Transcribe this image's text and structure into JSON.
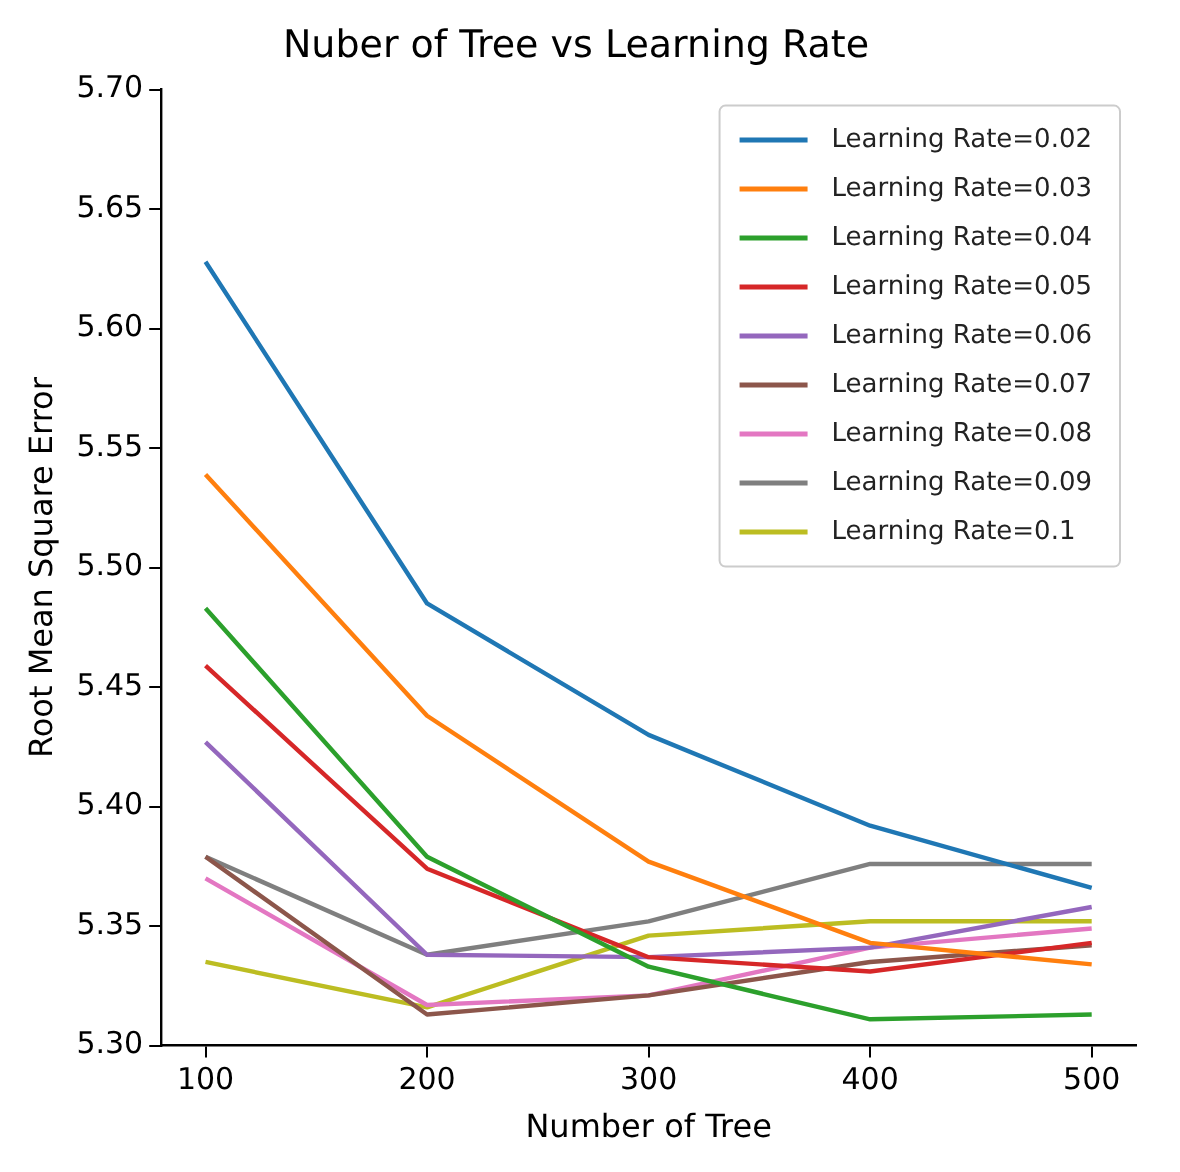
{
  "chart_data": {
    "type": "line",
    "title": "Nuber of Tree vs Learning Rate",
    "xlabel": "Number of Tree",
    "ylabel": "Root Mean Square Error",
    "x": [
      100,
      200,
      300,
      400,
      500
    ],
    "xlim": [
      80,
      520
    ],
    "xticks": [
      100,
      200,
      300,
      400,
      500
    ],
    "ylim": [
      5.3,
      5.7
    ],
    "yticks": [
      {
        "value": 5.3,
        "label": "5.30"
      },
      {
        "value": 5.35,
        "label": "5.35"
      },
      {
        "value": 5.4,
        "label": "5.40"
      },
      {
        "value": 5.45,
        "label": "5.45"
      },
      {
        "value": 5.5,
        "label": "5.50"
      },
      {
        "value": 5.55,
        "label": "5.55"
      },
      {
        "value": 5.6,
        "label": "5.60"
      },
      {
        "value": 5.65,
        "label": "5.65"
      },
      {
        "value": 5.7,
        "label": "5.70"
      }
    ],
    "grid": false,
    "legend": "top right",
    "marker": "none",
    "line_style": "solid",
    "series": [
      {
        "name": "Learning Rate=0.02",
        "color": "#1f77b4",
        "values": [
          5.628,
          5.485,
          5.43,
          5.392,
          5.366
        ]
      },
      {
        "name": "Learning Rate=0.03",
        "color": "#ff7f0e",
        "values": [
          5.539,
          5.438,
          5.377,
          5.343,
          5.334
        ]
      },
      {
        "name": "Learning Rate=0.04",
        "color": "#2ca02c",
        "values": [
          5.483,
          5.379,
          5.333,
          5.311,
          5.313
        ]
      },
      {
        "name": "Learning Rate=0.05",
        "color": "#d62728",
        "values": [
          5.459,
          5.374,
          5.337,
          5.331,
          5.343
        ]
      },
      {
        "name": "Learning Rate=0.06",
        "color": "#9467bd",
        "values": [
          5.427,
          5.338,
          5.337,
          5.341,
          5.358
        ]
      },
      {
        "name": "Learning Rate=0.07",
        "color": "#8c564b",
        "values": [
          5.379,
          5.313,
          5.321,
          5.335,
          5.342
        ]
      },
      {
        "name": "Learning Rate=0.08",
        "color": "#e377c2",
        "values": [
          5.37,
          5.317,
          5.321,
          5.341,
          5.349
        ]
      },
      {
        "name": "Learning Rate=0.09",
        "color": "#7f7f7f",
        "values": [
          5.379,
          5.338,
          5.352,
          5.376,
          5.376
        ]
      },
      {
        "name": "Learning Rate=0.1",
        "color": "#bcbd22",
        "values": [
          5.335,
          5.316,
          5.346,
          5.352,
          5.352
        ]
      }
    ]
  }
}
